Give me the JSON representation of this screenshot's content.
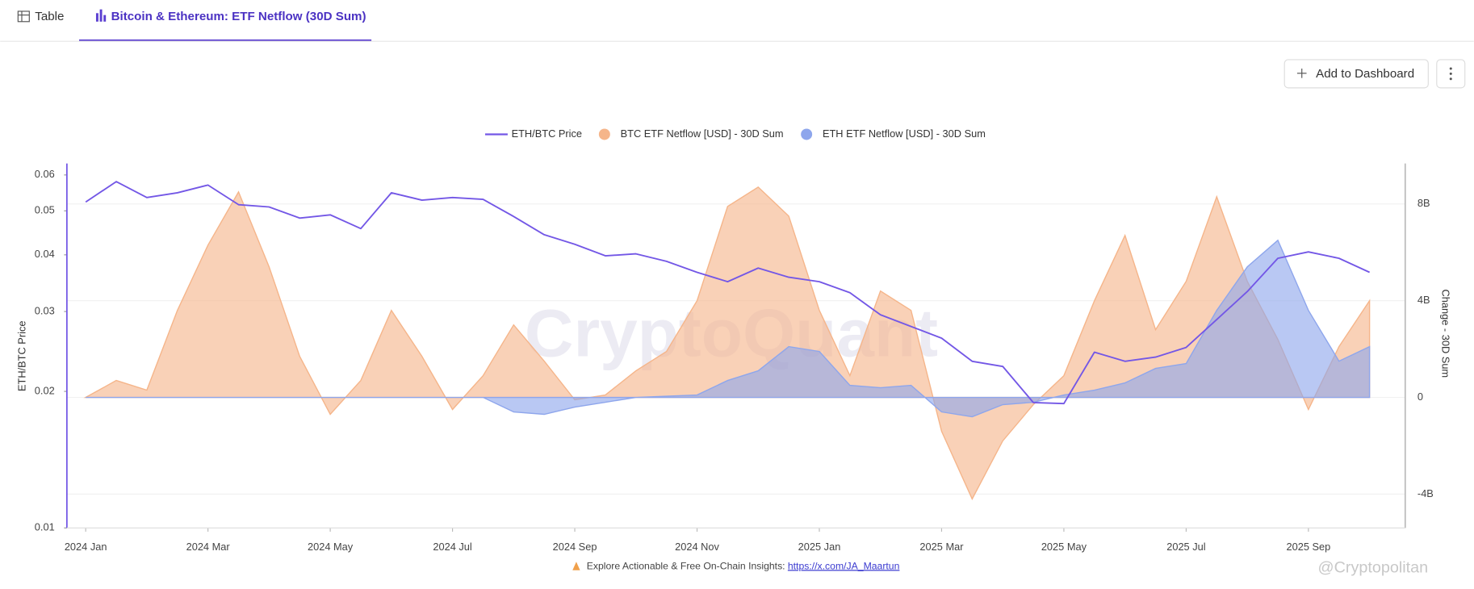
{
  "tabs": [
    "Table",
    "Bitcoin & Ethereum: ETF Netflow (30D Sum)"
  ],
  "button": "Add to Dashboard",
  "watermark": "CryptoQuant",
  "corner_watermark": "@Cryptopolitan",
  "footer": {
    "text": "Explore Actionable & Free On-Chain Insights:",
    "link": "https://x.com/JA_Maartun"
  },
  "chart_data": {
    "type": "line",
    "y_label": "ETH/BTC Price",
    "y2_label": "Change - 30D Sum",
    "ylog": true,
    "grid": true,
    "categories": [
      "2024 Jan",
      null,
      null,
      null,
      "2024 Mar",
      null,
      null,
      null,
      "2024 May",
      null,
      null,
      null,
      "2024 Jul",
      null,
      null,
      null,
      "2024 Sep",
      null,
      null,
      null,
      "2024 Nov",
      null,
      null,
      null,
      "2025 Jan",
      null,
      null,
      null,
      "2025 Mar",
      null,
      null,
      null,
      "2025 May",
      null,
      null,
      null,
      "2025 Jul",
      null,
      null,
      null,
      "2025 Sep",
      null,
      null
    ],
    "ylim": [
      0.01,
      0.063
    ],
    "yticks": [
      0.01,
      0.02,
      0.03,
      0.04,
      0.05,
      0.06
    ],
    "y2lim": [
      -5400000000,
      9600000000
    ],
    "y2ticks": [
      {
        "value": -4000000000,
        "label": "-4B"
      },
      0,
      {
        "value": 4000000000,
        "label": "4B"
      },
      {
        "value": 8000000000,
        "label": "8B"
      }
    ],
    "series": [
      {
        "name": "ETH/BTC Price",
        "type": "line",
        "color": "#7357e6",
        "values": [
          0.0523,
          0.058,
          0.0535,
          0.0548,
          0.057,
          0.0516,
          0.051,
          0.0482,
          0.049,
          0.0457,
          0.0548,
          0.0528,
          0.0535,
          0.053,
          0.0486,
          0.0443,
          0.0422,
          0.0398,
          0.0402,
          0.0387,
          0.0366,
          0.0349,
          0.0374,
          0.0357,
          0.0349,
          0.033,
          0.0295,
          0.0278,
          0.0262,
          0.0233,
          0.0227,
          0.0189,
          0.0188,
          0.0244,
          0.0233,
          0.0238,
          0.025,
          0.0288,
          0.0332,
          0.0393,
          0.0406,
          0.0393,
          0.0366
        ]
      },
      {
        "name": "BTC ETF Netflow [USD] - 30D Sum",
        "type": "area",
        "axis": "y2",
        "color": "#f5b58a",
        "values": [
          0,
          700000000,
          300000000,
          3600000000,
          6300000000,
          8500000000,
          5400000000,
          1700000000,
          -700000000,
          700000000,
          3600000000,
          1700000000,
          -500000000,
          900000000,
          3000000000,
          1500000000,
          -100000000,
          100000000,
          1100000000,
          1900000000,
          4000000000,
          7900000000,
          8700000000,
          7500000000,
          3600000000,
          900000000,
          4400000000,
          3600000000,
          -1400000000,
          -4200000000,
          -1800000000,
          -300000000,
          900000000,
          4000000000,
          6700000000,
          2800000000,
          4800000000,
          8300000000,
          4800000000,
          2400000000,
          -500000000,
          2100000000,
          4000000000
        ]
      },
      {
        "name": "ETH ETF Netflow [USD] - 30D Sum",
        "type": "area",
        "axis": "y2",
        "color": "#8ea6ec",
        "values": [
          0,
          0,
          0,
          0,
          0,
          0,
          0,
          0,
          0,
          0,
          0,
          0,
          0,
          0,
          -600000000,
          -700000000,
          -400000000,
          -200000000,
          0,
          50000000,
          100000000,
          700000000,
          1100000000,
          2100000000,
          1900000000,
          500000000,
          400000000,
          500000000,
          -600000000,
          -800000000,
          -300000000,
          -200000000,
          100000000,
          300000000,
          600000000,
          1200000000,
          1400000000,
          3600000000,
          5400000000,
          6500000000,
          3600000000,
          1500000000,
          2100000000
        ]
      }
    ]
  }
}
